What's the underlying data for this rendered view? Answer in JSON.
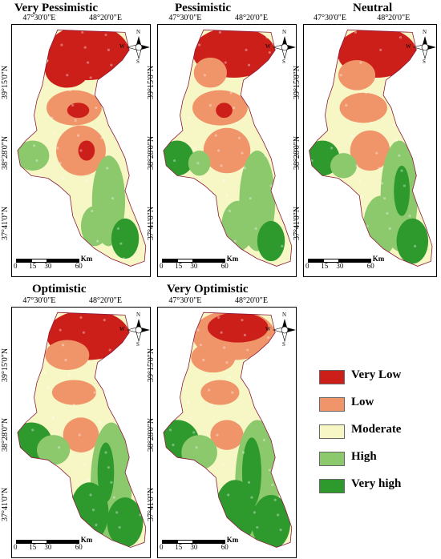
{
  "panels": [
    {
      "title": "Very Pessimistic",
      "profile": "vp"
    },
    {
      "title": "Pessimistic",
      "profile": "p"
    },
    {
      "title": "Neutral",
      "profile": "n"
    },
    {
      "title": "Optimistic",
      "profile": "o"
    },
    {
      "title": "Very Optimistic",
      "profile": "vo"
    }
  ],
  "longitudes": [
    "47°30'0\"E",
    "48°20'0\"E"
  ],
  "latitudes": [
    "39°15'0\"N",
    "38°28'0\"N",
    "37°41'0\"N"
  ],
  "compass": {
    "n": "N",
    "s": "S",
    "e": "E",
    "w": "W"
  },
  "scale": {
    "ticks": [
      "0",
      "15",
      "30",
      "60"
    ],
    "unit": "Km"
  },
  "legend": [
    {
      "label": "Very Low",
      "color": "#cc1f1a"
    },
    {
      "label": "Low",
      "color": "#f0956a"
    },
    {
      "label": "Moderate",
      "color": "#f7f6c5"
    },
    {
      "label": "High",
      "color": "#8cc86c"
    },
    {
      "label": "Very high",
      "color": "#2e9a2e"
    }
  ]
}
